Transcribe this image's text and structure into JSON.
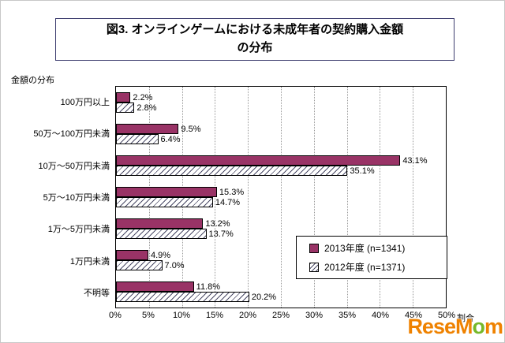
{
  "figure": {
    "title_line1": "図3. オンラインゲームにおける未成年者の契約購入金額",
    "title_line2": "の分布",
    "y_axis_title": "金額の分布",
    "x_axis_unit": "割合"
  },
  "chart_data": {
    "type": "bar",
    "orientation": "horizontal",
    "title": "図3. オンラインゲームにおける未成年者の契約購入金額の分布",
    "categories": [
      "100万円以上",
      "50万～100万円未満",
      "10万～50万円未満",
      "5万～10万円未満",
      "1万～5万円未満",
      "1万円未満",
      "不明等"
    ],
    "series": [
      {
        "name": "2013年度 (n=1341)",
        "values": [
          2.2,
          9.5,
          43.1,
          15.3,
          13.2,
          4.9,
          11.8
        ],
        "labels": [
          "2.2%",
          "9.5%",
          "43.1%",
          "15.3%",
          "13.2%",
          "4.9%",
          "11.8%"
        ],
        "style": "solid",
        "color": "#993366"
      },
      {
        "name": "2012年度 (n=1371)",
        "values": [
          2.8,
          6.4,
          35.1,
          14.7,
          13.7,
          7.0,
          20.2
        ],
        "labels": [
          "2.8%",
          "6.4%",
          "35.1%",
          "14.7%",
          "13.7%",
          "7.0%",
          "20.2%"
        ],
        "style": "hatched",
        "color": "#ffffff"
      }
    ],
    "xlim": [
      0,
      50
    ],
    "x_ticks": [
      "0%",
      "5%",
      "10%",
      "15%",
      "20%",
      "25%",
      "30%",
      "35%",
      "40%",
      "45%",
      "50%"
    ],
    "grid": true,
    "legend_position": "inside-bottom-right"
  },
  "legend": {
    "items": [
      {
        "label": "2013年度 (n=1341)",
        "style": "solid"
      },
      {
        "label": "2012年度 (n=1371)",
        "style": "hatched"
      }
    ]
  },
  "watermark": {
    "text": "ReseMom",
    "part1": "ReseM",
    "part2": "o",
    "part3": "m"
  },
  "colors": {
    "series_2013": "#993366",
    "hatch_line": "#4a4a66",
    "title_border": "#3c3c6e",
    "watermark_orange": "#ef8200",
    "watermark_green": "#76b82a"
  }
}
